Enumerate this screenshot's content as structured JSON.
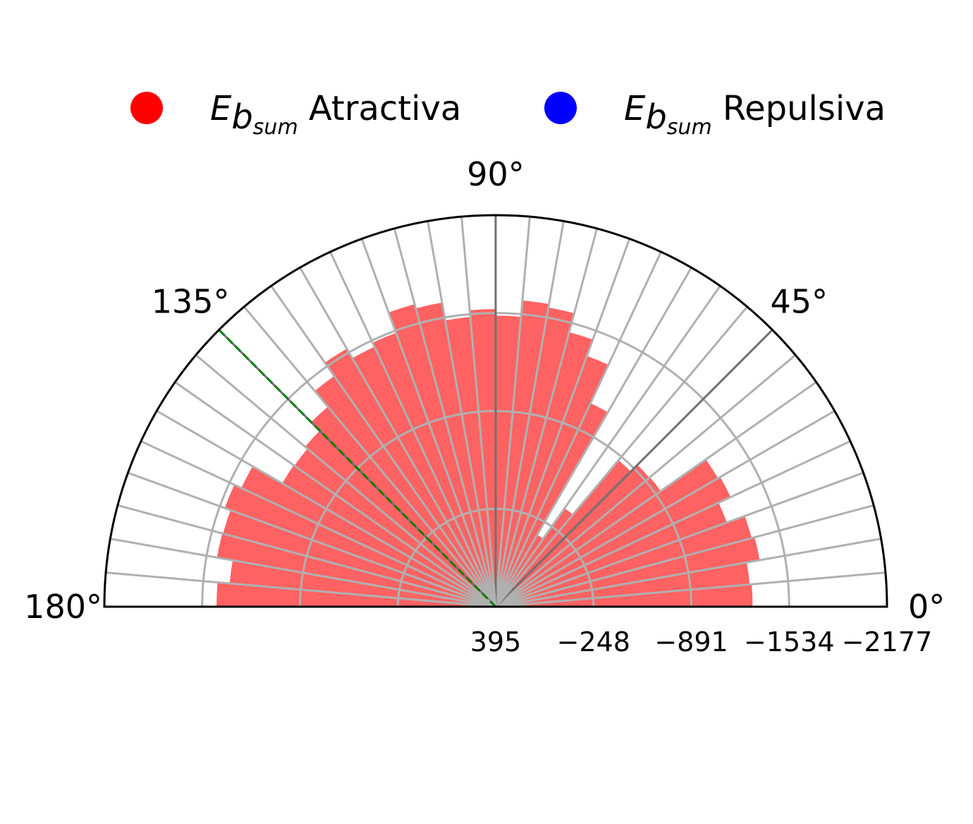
{
  "chart_data": {
    "type": "polar-bar",
    "theta_range_deg": [
      0,
      180
    ],
    "bin_width_deg": 5,
    "radial_axis": {
      "inverted": true,
      "ticks": [
        "395",
        "−248",
        "−891",
        "−1534",
        "−2177"
      ],
      "tick_values": [
        395,
        -248,
        -891,
        -1534,
        -2177
      ],
      "center_value": 395,
      "outer_value": -2177
    },
    "angle_ticks": [
      {
        "deg": 0,
        "label": "0°"
      },
      {
        "deg": 45,
        "label": "45°"
      },
      {
        "deg": 90,
        "label": "90°"
      },
      {
        "deg": 135,
        "label": "135°"
      },
      {
        "deg": 180,
        "label": "180°"
      }
    ],
    "reference_line_deg": 135,
    "legend": [
      {
        "symbol": "E",
        "subscript1": "b",
        "subscript2": "sum",
        "text": "Atractiva",
        "color": "#ff0000"
      },
      {
        "symbol": "E",
        "subscript1": "b",
        "subscript2": "sum",
        "text": "Repulsiva",
        "color": "#0000ff"
      }
    ],
    "colors": {
      "attractive": "#ff5a5a",
      "repulsive": "#6a6aff",
      "reference": "#008000",
      "grid": "#b0b0b0",
      "spoke": "#707070"
    },
    "series": [
      {
        "name": "Atractiva",
        "bins_start_deg": [
          0,
          5,
          10,
          15,
          20,
          25,
          30,
          35,
          40,
          45,
          50,
          55,
          60,
          65,
          70,
          75,
          80,
          85,
          90,
          95,
          100,
          105,
          110,
          115,
          120,
          125,
          130,
          135,
          140,
          145,
          150,
          155,
          160,
          165,
          170,
          175
        ],
        "values": [
          -1294,
          -1281,
          -1367,
          -1347,
          -1222,
          -1309,
          -1292,
          -929,
          -923,
          -861,
          -395,
          -150,
          -1080,
          -1358,
          -1472,
          -1601,
          -1624,
          -1517,
          -1560,
          -1515,
          -1634,
          -1662,
          -1519,
          -1489,
          -1562,
          -1455,
          -1320,
          -1240,
          -1220,
          -1225,
          -1450,
          -1500,
          -1460,
          -1465,
          -1360,
          -1440
        ]
      },
      {
        "name": "Repulsiva",
        "bins_start_deg": [
          0,
          5,
          10,
          15,
          20,
          25,
          30,
          35,
          40,
          45,
          50,
          55,
          60,
          65,
          70,
          75,
          80,
          85,
          90,
          95,
          100,
          105,
          110,
          115,
          120,
          125,
          130,
          135,
          140,
          145,
          150,
          155,
          160,
          165,
          170,
          175
        ],
        "values": [
          null,
          null,
          null,
          null,
          null,
          null,
          null,
          null,
          null,
          null,
          null,
          200,
          null,
          null,
          null,
          null,
          null,
          null,
          null,
          null,
          null,
          null,
          null,
          null,
          null,
          null,
          null,
          null,
          null,
          null,
          null,
          null,
          null,
          null,
          null,
          null
        ]
      }
    ]
  }
}
